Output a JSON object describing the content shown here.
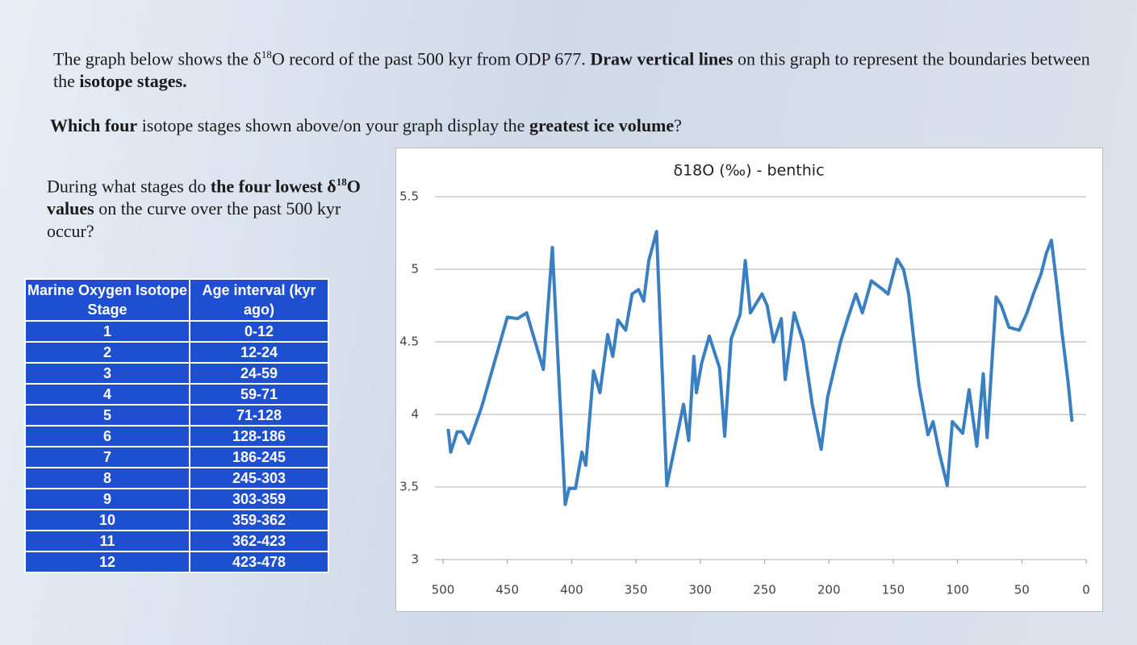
{
  "paragraphs": [
    {
      "parts": [
        {
          "text": "The graph below shows the δ"
        },
        {
          "text": "18",
          "sup": true
        },
        {
          "text": "O record of the past 500 kyr from ODP 677. "
        },
        {
          "text": "Draw vertical lines",
          "bold": true
        },
        {
          "text": " on this graph to represent the boundaries between the "
        },
        {
          "text": "isotope stages.",
          "bold": true
        }
      ]
    },
    {
      "parts": [
        {
          "text": "Which four",
          "bold": true
        },
        {
          "text": " isotope stages shown above/on your graph display the "
        },
        {
          "text": "greatest ice volume",
          "bold": true
        },
        {
          "text": "?"
        }
      ]
    },
    {
      "parts": [
        {
          "text": "During what stages do "
        },
        {
          "text": "the four lowest δ",
          "bold": true
        },
        {
          "text": "18",
          "sup": true,
          "bold": true
        },
        {
          "text": "O values",
          "bold": true
        },
        {
          "text": " on the curve over the past 500 kyr occur?"
        }
      ]
    }
  ],
  "table": {
    "header": [
      "Marine Oxygen Isotope Stage",
      "Age interval (kyr ago)"
    ],
    "rows": [
      [
        "1",
        "0-12"
      ],
      [
        "2",
        "12-24"
      ],
      [
        "3",
        "24-59"
      ],
      [
        "4",
        "59-71"
      ],
      [
        "5",
        "71-128"
      ],
      [
        "6",
        "128-186"
      ],
      [
        "7",
        "186-245"
      ],
      [
        "8",
        "245-303"
      ],
      [
        "9",
        "303-359"
      ],
      [
        "10",
        "359-362"
      ],
      [
        "11",
        "362-423"
      ],
      [
        "12",
        "423-478"
      ]
    ]
  },
  "chart_data": {
    "type": "line",
    "title": "δ18O (‰) - benthic",
    "x": [
      496,
      494,
      489,
      485,
      480,
      470,
      450,
      442,
      435,
      433,
      422,
      415,
      405,
      402,
      397,
      392,
      389,
      383,
      378,
      372,
      368,
      364,
      358,
      353,
      348,
      344,
      340,
      334,
      326,
      313,
      309,
      305,
      303,
      299,
      293,
      285,
      281,
      276,
      269,
      265,
      261,
      252,
      248,
      243,
      237,
      234,
      227,
      220,
      213,
      206,
      201,
      191,
      185,
      179,
      174,
      167,
      158,
      154,
      147,
      142,
      138,
      130,
      123,
      119,
      114,
      108,
      104,
      96,
      91,
      85,
      80,
      77,
      70,
      66,
      60,
      52,
      46,
      41,
      35,
      31,
      27,
      22,
      19,
      14,
      11
    ],
    "series": [
      {
        "name": "δ18O",
        "color": "#3a7fc1",
        "values": [
          3.9,
          3.74,
          3.88,
          3.88,
          3.8,
          4.05,
          4.67,
          4.66,
          4.7,
          4.64,
          4.31,
          5.15,
          3.38,
          3.49,
          3.49,
          3.74,
          3.65,
          4.3,
          4.15,
          4.55,
          4.4,
          4.65,
          4.58,
          4.83,
          4.86,
          4.78,
          5.06,
          5.26,
          3.51,
          4.07,
          3.82,
          4.4,
          4.15,
          4.35,
          4.54,
          4.32,
          3.85,
          4.52,
          4.69,
          5.06,
          4.7,
          4.83,
          4.75,
          4.5,
          4.66,
          4.24,
          4.7,
          4.5,
          4.07,
          3.76,
          4.12,
          4.5,
          4.67,
          4.83,
          4.7,
          4.92,
          4.86,
          4.83,
          5.07,
          5.0,
          4.83,
          4.2,
          3.86,
          3.95,
          3.73,
          3.51,
          3.95,
          3.87,
          4.17,
          3.78,
          4.28,
          3.84,
          4.81,
          4.75,
          4.6,
          4.58,
          4.7,
          4.83,
          4.97,
          5.11,
          5.2,
          4.83,
          4.58,
          4.22,
          3.95
        ]
      }
    ],
    "xlim": [
      500,
      0
    ],
    "xticks": [
      500,
      450,
      400,
      350,
      300,
      250,
      200,
      150,
      100,
      50,
      0
    ],
    "ylim": [
      3,
      5.5
    ],
    "yticks": [
      3,
      3.5,
      4,
      4.5,
      5,
      5.5
    ],
    "grid": true
  }
}
